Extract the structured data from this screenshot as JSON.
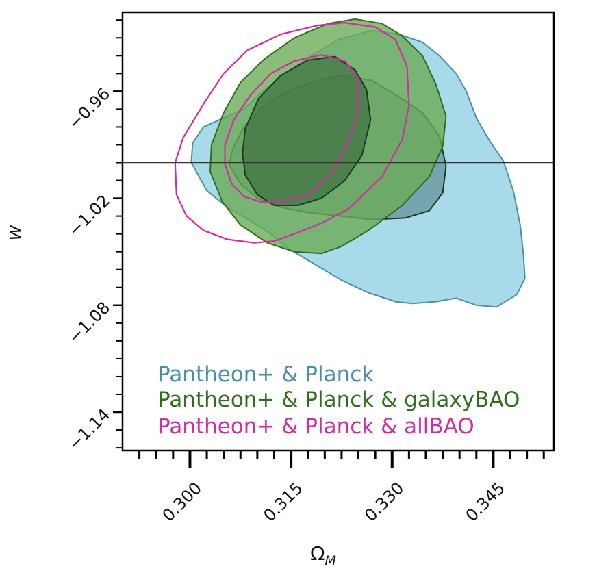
{
  "chart_data": {
    "type": "contour",
    "xlabel": "Ω",
    "xlabel_sub": "M",
    "ylabel": "w",
    "xlim": [
      0.29,
      0.354
    ],
    "ylim": [
      -1.1615,
      -0.9157
    ],
    "x_ticks": [
      0.3,
      0.315,
      0.33,
      0.345
    ],
    "x_tick_labels": [
      "0.300",
      "0.315",
      "0.330",
      "0.345"
    ],
    "y_ticks": [
      -0.96,
      -1.02,
      -1.08,
      -1.14
    ],
    "y_tick_labels": [
      "−0.96",
      "−1.02",
      "−1.08",
      "−1.14"
    ],
    "reference_line_y": -1.0,
    "legend_position": "lower-left",
    "series": [
      {
        "name": "Pantheon+ & Planck",
        "color": "#4a90a8",
        "fill_outer": "#8fcfe3",
        "fill_inner": "#5f8f95",
        "outer": [
          [
            0.3002,
            -1.0
          ],
          [
            0.3025,
            -1.0157
          ],
          [
            0.3055,
            -1.025
          ],
          [
            0.3095,
            -1.034
          ],
          [
            0.312,
            -1.04
          ],
          [
            0.3145,
            -1.048
          ],
          [
            0.3185,
            -1.057
          ],
          [
            0.3225,
            -1.066
          ],
          [
            0.3265,
            -1.073
          ],
          [
            0.3305,
            -1.078
          ],
          [
            0.333,
            -1.079
          ],
          [
            0.3365,
            -1.078
          ],
          [
            0.3395,
            -1.076
          ],
          [
            0.3425,
            -1.08
          ],
          [
            0.3455,
            -1.081
          ],
          [
            0.3485,
            -1.074
          ],
          [
            0.3497,
            -1.065
          ],
          [
            0.3495,
            -1.052
          ],
          [
            0.349,
            -1.035
          ],
          [
            0.348,
            -1.016
          ],
          [
            0.3465,
            -0.999
          ],
          [
            0.3445,
            -0.988
          ],
          [
            0.3425,
            -0.975
          ],
          [
            0.341,
            -0.96
          ],
          [
            0.3395,
            -0.95
          ],
          [
            0.337,
            -0.94
          ],
          [
            0.3345,
            -0.9325
          ],
          [
            0.331,
            -0.928
          ],
          [
            0.327,
            -0.926
          ],
          [
            0.322,
            -0.931
          ],
          [
            0.318,
            -0.94
          ],
          [
            0.3138,
            -0.951
          ],
          [
            0.3105,
            -0.961
          ],
          [
            0.308,
            -0.97
          ],
          [
            0.305,
            -0.975
          ],
          [
            0.302,
            -0.98
          ],
          [
            0.3004,
            -0.989
          ]
        ],
        "inner": [
          [
            0.3058,
            -1.001
          ],
          [
            0.3075,
            -1.012
          ],
          [
            0.31,
            -1.02
          ],
          [
            0.3135,
            -1.025
          ],
          [
            0.3175,
            -1.028
          ],
          [
            0.3225,
            -1.03
          ],
          [
            0.327,
            -1.032
          ],
          [
            0.332,
            -1.031
          ],
          [
            0.3355,
            -1.027
          ],
          [
            0.3375,
            -1.017
          ],
          [
            0.338,
            -1.002
          ],
          [
            0.337,
            -0.985
          ],
          [
            0.3345,
            -0.972
          ],
          [
            0.331,
            -0.963
          ],
          [
            0.327,
            -0.954
          ],
          [
            0.3225,
            -0.951
          ],
          [
            0.318,
            -0.955
          ],
          [
            0.3145,
            -0.96
          ],
          [
            0.311,
            -0.968
          ],
          [
            0.308,
            -0.98
          ],
          [
            0.3064,
            -0.992
          ]
        ]
      },
      {
        "name": "Pantheon+ & Planck & galaxyBAO",
        "color": "#2e6f1e",
        "fill_outer": "#6aab55",
        "fill_inner": "#3f7043",
        "outer": [
          [
            0.303,
            -1.005
          ],
          [
            0.3048,
            -1.022
          ],
          [
            0.3075,
            -1.035
          ],
          [
            0.3115,
            -1.045
          ],
          [
            0.3155,
            -1.05
          ],
          [
            0.3195,
            -1.051
          ],
          [
            0.3225,
            -1.047
          ],
          [
            0.3265,
            -1.038
          ],
          [
            0.3315,
            -1.024
          ],
          [
            0.3355,
            -1.008
          ],
          [
            0.3375,
            -0.991
          ],
          [
            0.338,
            -0.974
          ],
          [
            0.3365,
            -0.956
          ],
          [
            0.3345,
            -0.94
          ],
          [
            0.3315,
            -0.929
          ],
          [
            0.3285,
            -0.922
          ],
          [
            0.3245,
            -0.9195
          ],
          [
            0.3205,
            -0.922
          ],
          [
            0.3155,
            -0.93
          ],
          [
            0.311,
            -0.942
          ],
          [
            0.3075,
            -0.955
          ],
          [
            0.305,
            -0.972
          ],
          [
            0.3032,
            -0.99
          ]
        ],
        "inner": [
          [
            0.3082,
            -1.007
          ],
          [
            0.31,
            -1.018
          ],
          [
            0.3125,
            -1.024
          ],
          [
            0.316,
            -1.024
          ],
          [
            0.3195,
            -1.02
          ],
          [
            0.323,
            -1.01
          ],
          [
            0.3255,
            -0.996
          ],
          [
            0.3268,
            -0.976
          ],
          [
            0.3262,
            -0.959
          ],
          [
            0.3245,
            -0.948
          ],
          [
            0.3215,
            -0.9405
          ],
          [
            0.3175,
            -0.9425
          ],
          [
            0.3135,
            -0.951
          ],
          [
            0.3102,
            -0.964
          ],
          [
            0.3082,
            -0.981
          ],
          [
            0.3078,
            -0.995
          ]
        ]
      },
      {
        "name": "Pantheon+ & Planck & allBAO",
        "color": "#d42ba0",
        "outer": [
          [
            0.2978,
            -1.0
          ],
          [
            0.298,
            -1.018
          ],
          [
            0.2995,
            -1.03
          ],
          [
            0.302,
            -1.038
          ],
          [
            0.3055,
            -1.043
          ],
          [
            0.3095,
            -1.045
          ],
          [
            0.3125,
            -1.044
          ],
          [
            0.3155,
            -1.04
          ],
          [
            0.3195,
            -1.034
          ],
          [
            0.3235,
            -1.026
          ],
          [
            0.3285,
            -1.008
          ],
          [
            0.3315,
            -0.987
          ],
          [
            0.3325,
            -0.968
          ],
          [
            0.3322,
            -0.946
          ],
          [
            0.3305,
            -0.931
          ],
          [
            0.3275,
            -0.924
          ],
          [
            0.323,
            -0.9215
          ],
          [
            0.319,
            -0.923
          ],
          [
            0.3135,
            -0.928
          ],
          [
            0.3085,
            -0.937
          ],
          [
            0.305,
            -0.95
          ],
          [
            0.3022,
            -0.966
          ],
          [
            0.299,
            -0.986
          ]
        ],
        "inner": [
          [
            0.3052,
            -1.001
          ],
          [
            0.3062,
            -1.012
          ],
          [
            0.308,
            -1.019
          ],
          [
            0.3105,
            -1.022
          ],
          [
            0.3135,
            -1.022
          ],
          [
            0.3175,
            -1.018
          ],
          [
            0.321,
            -1.006
          ],
          [
            0.3235,
            -0.989
          ],
          [
            0.325,
            -0.97
          ],
          [
            0.325,
            -0.953
          ],
          [
            0.323,
            -0.943
          ],
          [
            0.3195,
            -0.9395
          ],
          [
            0.3155,
            -0.943
          ],
          [
            0.312,
            -0.95
          ],
          [
            0.309,
            -0.962
          ],
          [
            0.3065,
            -0.976
          ],
          [
            0.3052,
            -0.99
          ]
        ]
      }
    ]
  }
}
